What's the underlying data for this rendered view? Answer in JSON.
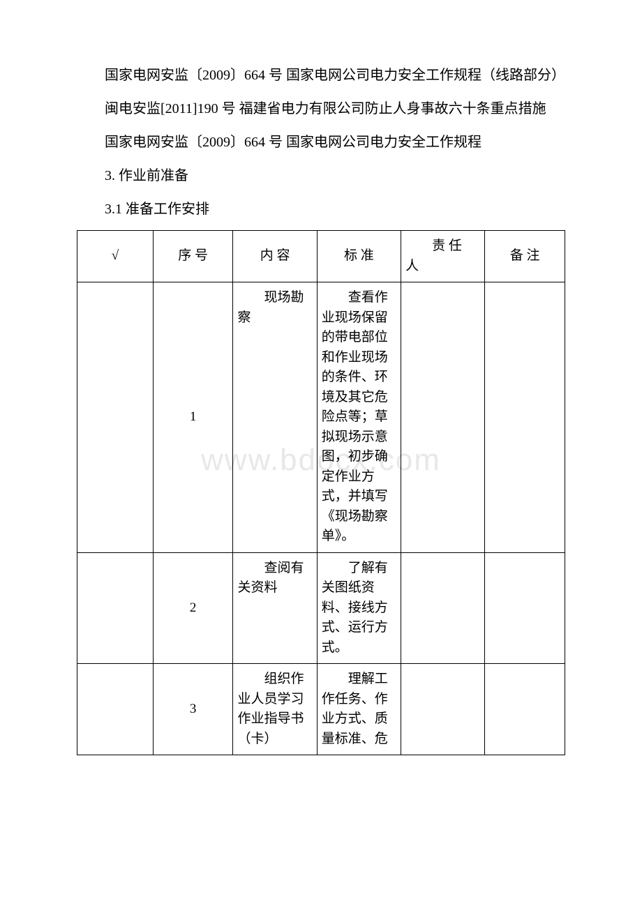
{
  "watermark": "www.bdocx.com",
  "paragraphs": {
    "p1": "国家电网安监〔2009〕664 号 国家电网公司电力安全工作规程（线路部分）",
    "p2": "闽电安监[2011]190 号 福建省电力有限公司防止人身事故六十条重点措施",
    "p3": "国家电网安监〔2009〕664 号 国家电网公司电力安全工作规程",
    "p4": "3. 作业前准备",
    "p5": "3.1 准备工作安排"
  },
  "table": {
    "headers": {
      "check": "√",
      "seq": "序 号",
      "content": "内 容",
      "standard": "标 准",
      "person_label": "责 任",
      "person_sub": "人",
      "note": "备 注"
    },
    "rows": [
      {
        "seq": "1",
        "content": "现场勘察",
        "standard": "查看作业现场保留的带电部位和作业现场的条件、环境及其它危险点等；草拟现场示意图，初步确定作业方式，并填写《现场勘察单》。",
        "person": "",
        "note": ""
      },
      {
        "seq": "2",
        "content": "查阅有关资料",
        "standard": "了解有关图纸资料、接线方式、运行方式。",
        "person": "",
        "note": ""
      },
      {
        "seq": "3",
        "content": "组织作业人员学习作业指导书（卡）",
        "standard": "理解工作任务、作业方式、质量标准、危",
        "person": "",
        "note": ""
      }
    ]
  }
}
